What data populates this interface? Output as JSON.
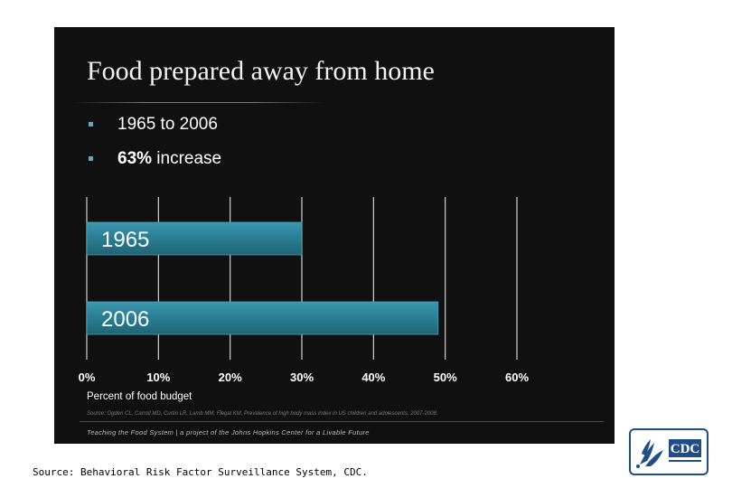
{
  "slide": {
    "title": "Food prepared away from home",
    "bullets": [
      {
        "strong": "",
        "text": "1965 to 2006"
      },
      {
        "strong": "63%",
        "text": " increase"
      }
    ],
    "citation": "Source: Ogden CL, Carroll MD, Curtin LR, Lamb MM, Flegal KM. Prevalence of high body mass index in US children and adolescents, 2007-2008.",
    "footer": "Teaching the Food System | a project of the Johns Hopkins Center for a Livable Future"
  },
  "chart_data": {
    "type": "bar",
    "orientation": "horizontal",
    "categories": [
      "1965",
      "2006"
    ],
    "values": [
      30,
      49
    ],
    "xlabel": "Percent of food budget",
    "xlim": [
      0,
      60
    ],
    "xticks": [
      "0%",
      "10%",
      "20%",
      "30%",
      "40%",
      "50%",
      "60%"
    ],
    "grid": true,
    "bar_color": "#2a7d92"
  },
  "source_text": "Source: Behavioral Risk Factor Surveillance System, CDC.",
  "logo": {
    "text": "CDC",
    "icon": "hhs-eagle-icon"
  }
}
